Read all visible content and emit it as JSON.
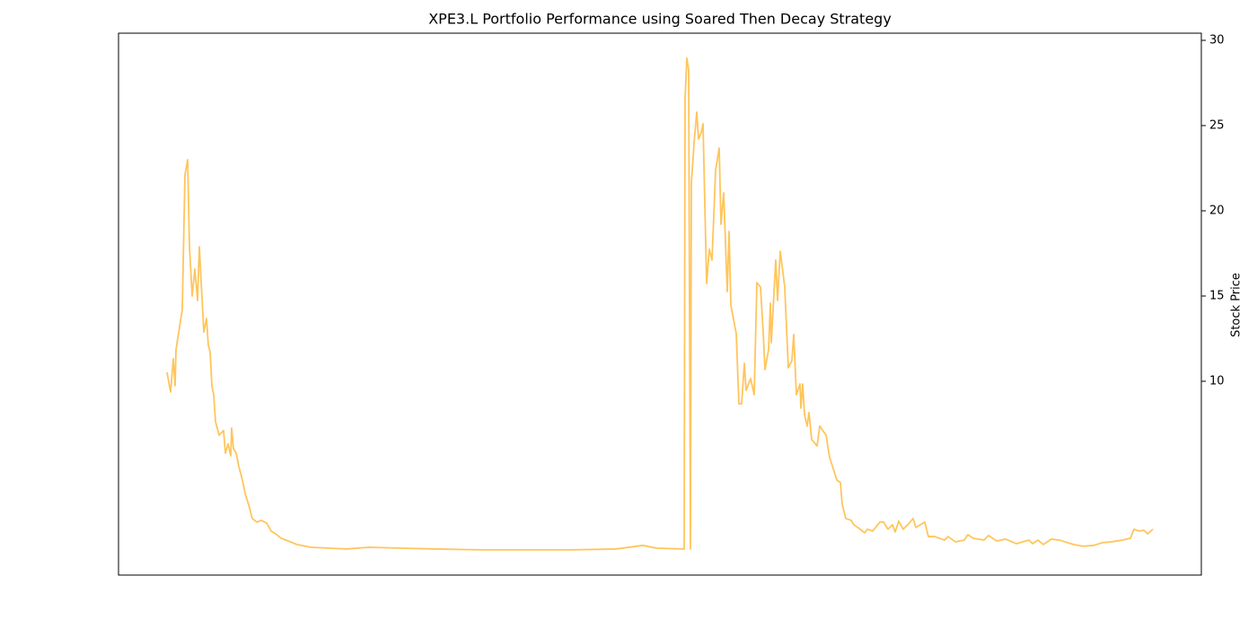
{
  "chart_data": {
    "type": "line",
    "title": "XPE3.L Portfolio Performance using Soared Then Decay Strategy",
    "y_axis_label": "Stock Price",
    "y_axis_side": "right",
    "xlim": [
      -54,
      1152
    ],
    "ylim": [
      -1.37,
      30.42
    ],
    "yticks": [
      10,
      15,
      20,
      25,
      30
    ],
    "grid": false,
    "series": [
      {
        "color": "#ffc55c",
        "x": [
          0,
          4,
          7,
          9,
          10,
          17,
          20,
          23,
          25,
          28,
          31,
          34,
          36,
          41,
          44,
          46,
          48,
          50,
          52,
          54,
          58,
          63,
          65,
          68,
          71,
          72,
          74,
          77,
          80,
          84,
          87,
          91,
          95,
          100,
          105,
          111,
          116,
          121,
          127,
          135,
          145,
          160,
          180,
          200,
          225,
          260,
          300,
          350,
          400,
          450,
          500,
          530,
          545,
          576,
          577,
          579,
          581,
          583,
          584,
          587,
          590,
          592,
          595,
          597,
          601,
          604,
          607,
          611,
          615,
          617,
          620,
          624,
          626,
          628,
          634,
          637,
          640,
          643,
          645,
          650,
          654,
          657,
          661,
          664,
          666,
          670,
          672,
          673,
          678,
          680,
          683,
          688,
          692,
          696,
          698,
          701,
          705,
          706,
          708,
          710,
          713,
          715,
          718,
          724,
          727,
          734,
          738,
          746,
          750,
          752,
          756,
          762,
          765,
          772,
          777,
          780,
          786,
          794,
          798,
          803,
          808,
          811,
          815,
          820,
          825,
          831,
          834,
          844,
          848,
          855,
          866,
          870,
          878,
          888,
          892,
          898,
          910,
          915,
          924,
          934,
          946,
          960,
          964,
          970,
          976,
          985,
          994,
          1000,
          1010,
          1020,
          1032,
          1042,
          1052,
          1064,
          1073,
          1077,
          1083,
          1088,
          1092,
          1098
        ],
        "values": [
          10.53,
          9.37,
          11.32,
          9.74,
          11.84,
          14.21,
          22.11,
          23.0,
          17.89,
          15.0,
          16.58,
          14.74,
          17.89,
          12.89,
          13.68,
          12.11,
          11.74,
          9.74,
          9.21,
          7.63,
          6.84,
          7.11,
          5.79,
          6.32,
          5.63,
          7.26,
          6.05,
          5.79,
          5.0,
          4.21,
          3.42,
          2.74,
          1.95,
          1.74,
          1.84,
          1.68,
          1.21,
          1.05,
          0.79,
          0.63,
          0.42,
          0.26,
          0.21,
          0.16,
          0.26,
          0.21,
          0.16,
          0.11,
          0.11,
          0.11,
          0.16,
          0.37,
          0.21,
          0.16,
          26.58,
          28.95,
          28.26,
          0.16,
          21.58,
          23.95,
          25.79,
          24.21,
          24.58,
          25.11,
          15.74,
          17.74,
          17.11,
          22.37,
          23.68,
          19.21,
          21.05,
          15.26,
          18.79,
          14.47,
          12.79,
          8.68,
          8.68,
          11.05,
          9.47,
          10.16,
          9.21,
          15.79,
          15.53,
          12.89,
          10.68,
          11.84,
          14.58,
          12.26,
          17.11,
          14.74,
          17.63,
          15.53,
          10.79,
          11.21,
          12.74,
          9.21,
          9.84,
          8.42,
          9.84,
          8.05,
          7.37,
          8.16,
          6.58,
          6.21,
          7.37,
          6.84,
          5.53,
          4.21,
          4.05,
          2.79,
          1.95,
          1.84,
          1.58,
          1.32,
          1.11,
          1.32,
          1.21,
          1.74,
          1.74,
          1.32,
          1.58,
          1.16,
          1.79,
          1.32,
          1.58,
          1.95,
          1.42,
          1.74,
          0.89,
          0.89,
          0.68,
          0.89,
          0.58,
          0.68,
          1.0,
          0.79,
          0.68,
          0.95,
          0.63,
          0.74,
          0.47,
          0.68,
          0.47,
          0.68,
          0.42,
          0.74,
          0.68,
          0.58,
          0.42,
          0.32,
          0.37,
          0.53,
          0.58,
          0.68,
          0.79,
          1.32,
          1.21,
          1.26,
          1.05,
          1.32
        ]
      }
    ]
  }
}
